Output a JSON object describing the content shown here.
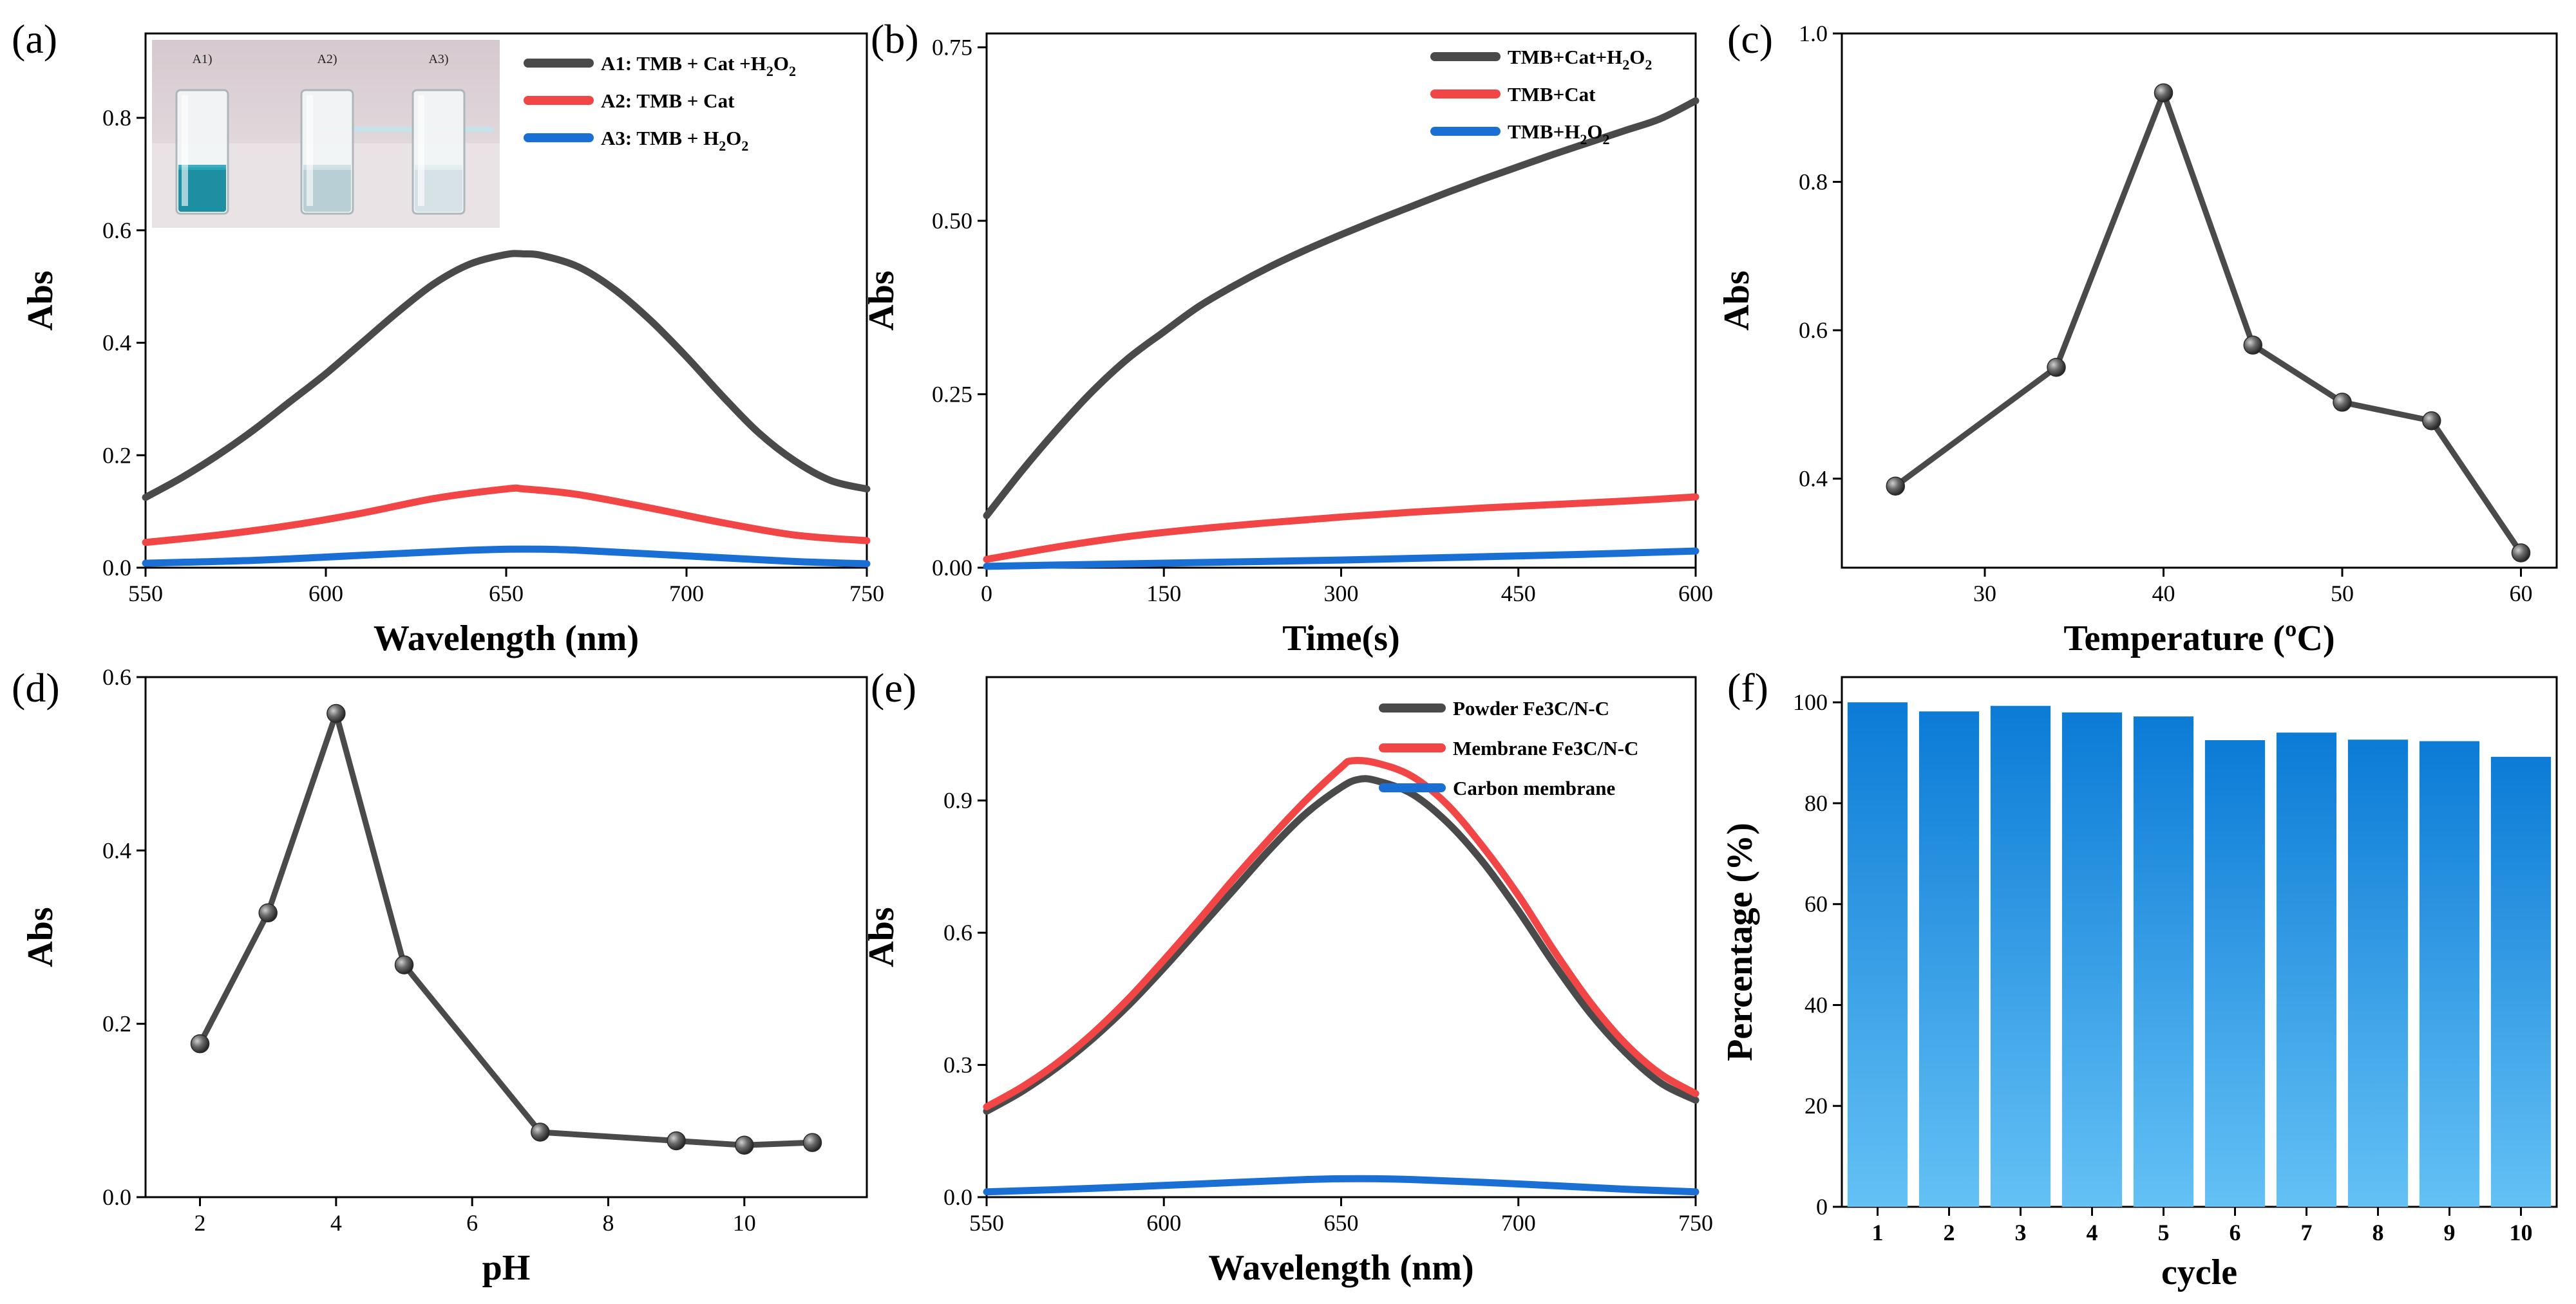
{
  "colors": {
    "dark": "#4a4a4a",
    "red": "#f24545",
    "blue": "#1a6fd4",
    "bar_top": "#0b7bd6",
    "bar_bottom": "#64c1f5"
  },
  "chart_data": [
    {
      "id": "a",
      "panel_label": "(a)",
      "type": "line",
      "title": "",
      "xlabel": "Wavelength (nm)",
      "ylabel": "Abs",
      "xlim": [
        550,
        750
      ],
      "ylim": [
        0,
        0.95
      ],
      "xticks": [
        550,
        600,
        650,
        700,
        750
      ],
      "yticks": [
        0.0,
        0.2,
        0.4,
        0.6,
        0.8
      ],
      "xtick_labels": [
        "550",
        "600",
        "650",
        "700",
        "750"
      ],
      "ytick_labels": [
        "0.0",
        "0.2",
        "0.4",
        "0.6",
        "0.8"
      ],
      "series": [
        {
          "name": "A1: TMB + Cat +H2O2",
          "legend_main": "A1: TMB + Cat +H",
          "legend_sub": "2",
          "legend_tail": "O",
          "legend_sub2": "2",
          "color": "dark",
          "x": [
            550,
            560,
            570,
            580,
            590,
            600,
            610,
            620,
            630,
            640,
            650,
            655,
            660,
            670,
            680,
            690,
            700,
            710,
            720,
            730,
            740,
            750
          ],
          "y": [
            0.125,
            0.16,
            0.2,
            0.245,
            0.295,
            0.345,
            0.4,
            0.455,
            0.505,
            0.54,
            0.557,
            0.558,
            0.555,
            0.535,
            0.495,
            0.44,
            0.375,
            0.305,
            0.24,
            0.19,
            0.155,
            0.14
          ]
        },
        {
          "name": "A2: TMB + Cat",
          "legend_main": "A2: TMB + Cat",
          "color": "red",
          "x": [
            550,
            570,
            590,
            610,
            630,
            650,
            655,
            670,
            690,
            710,
            730,
            750
          ],
          "y": [
            0.045,
            0.058,
            0.075,
            0.097,
            0.123,
            0.14,
            0.14,
            0.13,
            0.106,
            0.08,
            0.058,
            0.048
          ]
        },
        {
          "name": "A3: TMB + H2O2",
          "legend_main": "A3: TMB + H",
          "legend_sub": "2",
          "legend_tail": "O",
          "legend_sub2": "2",
          "color": "blue",
          "x": [
            550,
            580,
            610,
            640,
            655,
            670,
            700,
            730,
            750
          ],
          "y": [
            0.008,
            0.013,
            0.022,
            0.031,
            0.033,
            0.031,
            0.021,
            0.011,
            0.007
          ]
        }
      ],
      "inset": {
        "labels": [
          "A1)",
          "A2)",
          "A3)"
        ]
      }
    },
    {
      "id": "b",
      "panel_label": "(b)",
      "type": "line",
      "title": "",
      "xlabel": "Time(s)",
      "ylabel": "Abs",
      "xlim": [
        0,
        600
      ],
      "ylim": [
        0,
        0.77
      ],
      "xticks": [
        0,
        150,
        300,
        450,
        600
      ],
      "yticks": [
        0.0,
        0.25,
        0.5,
        0.75
      ],
      "xtick_labels": [
        "0",
        "150",
        "300",
        "450",
        "600"
      ],
      "ytick_labels": [
        "0.00",
        "0.25",
        "0.50",
        "0.75"
      ],
      "series": [
        {
          "name": "TMB+Cat+H2O2",
          "legend_main": "TMB+Cat+H",
          "legend_sub": "2",
          "legend_tail": "O",
          "legend_sub2": "2",
          "color": "dark",
          "x": [
            0,
            30,
            60,
            90,
            120,
            150,
            180,
            210,
            240,
            270,
            300,
            330,
            360,
            390,
            420,
            450,
            480,
            510,
            540,
            570,
            600
          ],
          "y": [
            0.075,
            0.14,
            0.2,
            0.255,
            0.302,
            0.34,
            0.377,
            0.407,
            0.434,
            0.458,
            0.48,
            0.501,
            0.521,
            0.541,
            0.56,
            0.578,
            0.596,
            0.613,
            0.63,
            0.647,
            0.673
          ]
        },
        {
          "name": "TMB+Cat",
          "legend_main": "TMB+Cat",
          "color": "red",
          "x": [
            0,
            60,
            120,
            180,
            240,
            300,
            360,
            420,
            480,
            540,
            600
          ],
          "y": [
            0.012,
            0.03,
            0.045,
            0.056,
            0.065,
            0.073,
            0.08,
            0.086,
            0.091,
            0.096,
            0.102
          ]
        },
        {
          "name": "TMB+H2O2",
          "legend_main": "TMB+H",
          "legend_sub": "2",
          "legend_tail": "O",
          "legend_sub2": "2",
          "color": "blue",
          "x": [
            0,
            100,
            200,
            300,
            400,
            500,
            600
          ],
          "y": [
            0.002,
            0.005,
            0.008,
            0.011,
            0.015,
            0.019,
            0.024
          ]
        }
      ]
    },
    {
      "id": "c",
      "panel_label": "(c)",
      "type": "line",
      "title": "",
      "xlabel": "Temperature (ºC)",
      "ylabel": "Abs",
      "xlim": [
        22,
        62
      ],
      "ylim": [
        0.28,
        1.0
      ],
      "xticks": [
        30,
        40,
        50,
        60
      ],
      "yticks": [
        0.4,
        0.6,
        0.8,
        1.0
      ],
      "xtick_labels": [
        "30",
        "40",
        "50",
        "60"
      ],
      "ytick_labels": [
        "0.4",
        "0.6",
        "0.8",
        "1.0"
      ],
      "markers": true,
      "series": [
        {
          "name": "Abs vs Temperature",
          "color": "dark",
          "x": [
            25,
            34,
            40,
            45,
            50,
            55,
            60
          ],
          "y": [
            0.39,
            0.55,
            0.92,
            0.58,
            0.503,
            0.478,
            0.3
          ]
        }
      ]
    },
    {
      "id": "d",
      "panel_label": "(d)",
      "type": "line",
      "title": "",
      "xlabel": "pH",
      "ylabel": "Abs",
      "xlim": [
        1.2,
        11.8
      ],
      "ylim": [
        0,
        0.6
      ],
      "xticks": [
        2,
        4,
        6,
        8,
        10
      ],
      "yticks": [
        0.0,
        0.2,
        0.4,
        0.6
      ],
      "xtick_labels": [
        "2",
        "4",
        "6",
        "8",
        "10"
      ],
      "ytick_labels": [
        "0.0",
        "0.2",
        "0.4",
        "0.6"
      ],
      "markers": true,
      "series": [
        {
          "name": "Abs vs pH",
          "color": "dark",
          "x": [
            2,
            3,
            4,
            5,
            7,
            9,
            10,
            11
          ],
          "y": [
            0.177,
            0.328,
            0.558,
            0.268,
            0.075,
            0.065,
            0.06,
            0.063
          ]
        }
      ]
    },
    {
      "id": "e",
      "panel_label": "(e)",
      "type": "line",
      "title": "",
      "xlabel": "Wavelength (nm)",
      "ylabel": "Abs",
      "xlim": [
        550,
        750
      ],
      "ylim": [
        0,
        1.18
      ],
      "xticks": [
        550,
        600,
        650,
        700,
        750
      ],
      "yticks": [
        0.0,
        0.3,
        0.6,
        0.9
      ],
      "xtick_labels": [
        "550",
        "600",
        "650",
        "700",
        "750"
      ],
      "ytick_labels": [
        "0.0",
        "0.3",
        "0.6",
        "0.9"
      ],
      "series": [
        {
          "name": "Powder Fe3C/N-C",
          "legend_main": "Powder Fe3C/N-C",
          "color": "dark",
          "x": [
            550,
            560,
            570,
            580,
            590,
            600,
            610,
            620,
            630,
            640,
            650,
            655,
            660,
            670,
            680,
            690,
            700,
            710,
            720,
            730,
            740,
            750
          ],
          "y": [
            0.195,
            0.24,
            0.295,
            0.36,
            0.435,
            0.52,
            0.61,
            0.7,
            0.79,
            0.87,
            0.93,
            0.948,
            0.945,
            0.915,
            0.85,
            0.76,
            0.65,
            0.53,
            0.42,
            0.33,
            0.26,
            0.22
          ]
        },
        {
          "name": "Membrane Fe3C/N-C",
          "legend_main": "Membrane Fe3C/N-C",
          "color": "red",
          "x": [
            550,
            560,
            570,
            580,
            590,
            600,
            610,
            620,
            630,
            640,
            650,
            653,
            660,
            670,
            680,
            690,
            700,
            710,
            720,
            730,
            740,
            750
          ],
          "y": [
            0.205,
            0.25,
            0.305,
            0.372,
            0.45,
            0.538,
            0.63,
            0.725,
            0.815,
            0.9,
            0.975,
            0.99,
            0.985,
            0.955,
            0.89,
            0.795,
            0.685,
            0.56,
            0.445,
            0.35,
            0.28,
            0.235
          ]
        },
        {
          "name": "Carbon membrane",
          "legend_main": "Carbon membrane",
          "color": "blue",
          "x": [
            550,
            580,
            610,
            640,
            655,
            670,
            700,
            730,
            750
          ],
          "y": [
            0.012,
            0.02,
            0.03,
            0.04,
            0.042,
            0.04,
            0.03,
            0.018,
            0.012
          ]
        }
      ]
    },
    {
      "id": "f",
      "panel_label": "(f)",
      "type": "bar",
      "title": "",
      "xlabel": "cycle",
      "ylabel": "Percentage (%)",
      "ylim": [
        0,
        105
      ],
      "yticks": [
        0,
        20,
        40,
        60,
        80,
        100
      ],
      "ytick_labels": [
        "0",
        "20",
        "40",
        "60",
        "80",
        "100"
      ],
      "categories": [
        "1",
        "2",
        "3",
        "4",
        "5",
        "6",
        "7",
        "8",
        "9",
        "10"
      ],
      "values": [
        100,
        98.2,
        99.3,
        98,
        97.2,
        92.5,
        94,
        92.6,
        92.3,
        89.2
      ]
    }
  ]
}
